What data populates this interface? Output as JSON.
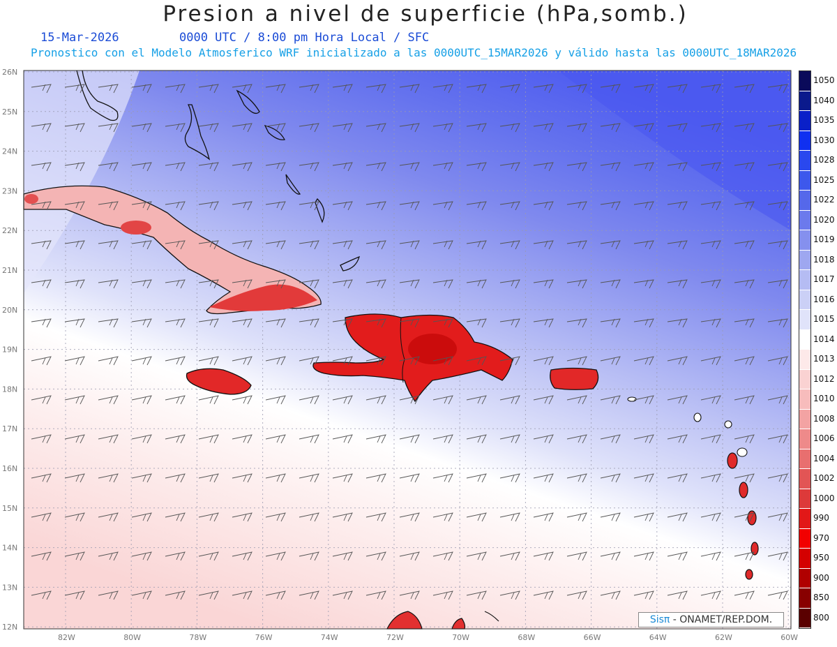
{
  "header": {
    "title": "Presion a nivel de superficie (hPa,somb.)",
    "date": "15-Mar-2026",
    "time_info": "0000 UTC / 8:00 pm Hora Local / SFC",
    "model_info": "Pronostico con el Modelo Atmosferico WRF inicializado a las 0000UTC_15MAR2026 y válido hasta las  0000UTC_18MAR2026"
  },
  "axes": {
    "lat_labels": [
      "26N",
      "25N",
      "24N",
      "23N",
      "22N",
      "21N",
      "20N",
      "19N",
      "18N",
      "17N",
      "16N",
      "15N",
      "14N",
      "13N",
      "12N"
    ],
    "lon_labels": [
      "82W",
      "80W",
      "78W",
      "76W",
      "74W",
      "72W",
      "70W",
      "68W",
      "66W",
      "64W",
      "62W",
      "60W"
    ]
  },
  "legend": {
    "levels": [
      "1050",
      "1040",
      "1035",
      "1030",
      "1028",
      "1025",
      "1022",
      "1020",
      "1019",
      "1018",
      "1017",
      "1016",
      "1015",
      "1014",
      "1013",
      "1012",
      "1010",
      "1008",
      "1006",
      "1004",
      "1002",
      "1000",
      "990",
      "970",
      "950",
      "900",
      "850",
      "800"
    ],
    "colors": [
      "#0a0a5a",
      "#0b1a8c",
      "#0a20c8",
      "#1030f0",
      "#2a48ee",
      "#3d58ec",
      "#5568ea",
      "#6c7aec",
      "#8590ee",
      "#9ea7f0",
      "#b5bcf3",
      "#cbd0f6",
      "#e0e3fa",
      "#ffffff",
      "#fde9e9",
      "#fad2d2",
      "#f7bcbc",
      "#f3a3a3",
      "#ee8a8a",
      "#e86f6f",
      "#e25555",
      "#dd3a3a",
      "#e21818",
      "#f20000",
      "#d40000",
      "#b00000",
      "#880000",
      "#5a0000"
    ]
  },
  "credit": {
    "brand": "Sisπ",
    "text": "- ONAMET/REP.DOM."
  }
}
